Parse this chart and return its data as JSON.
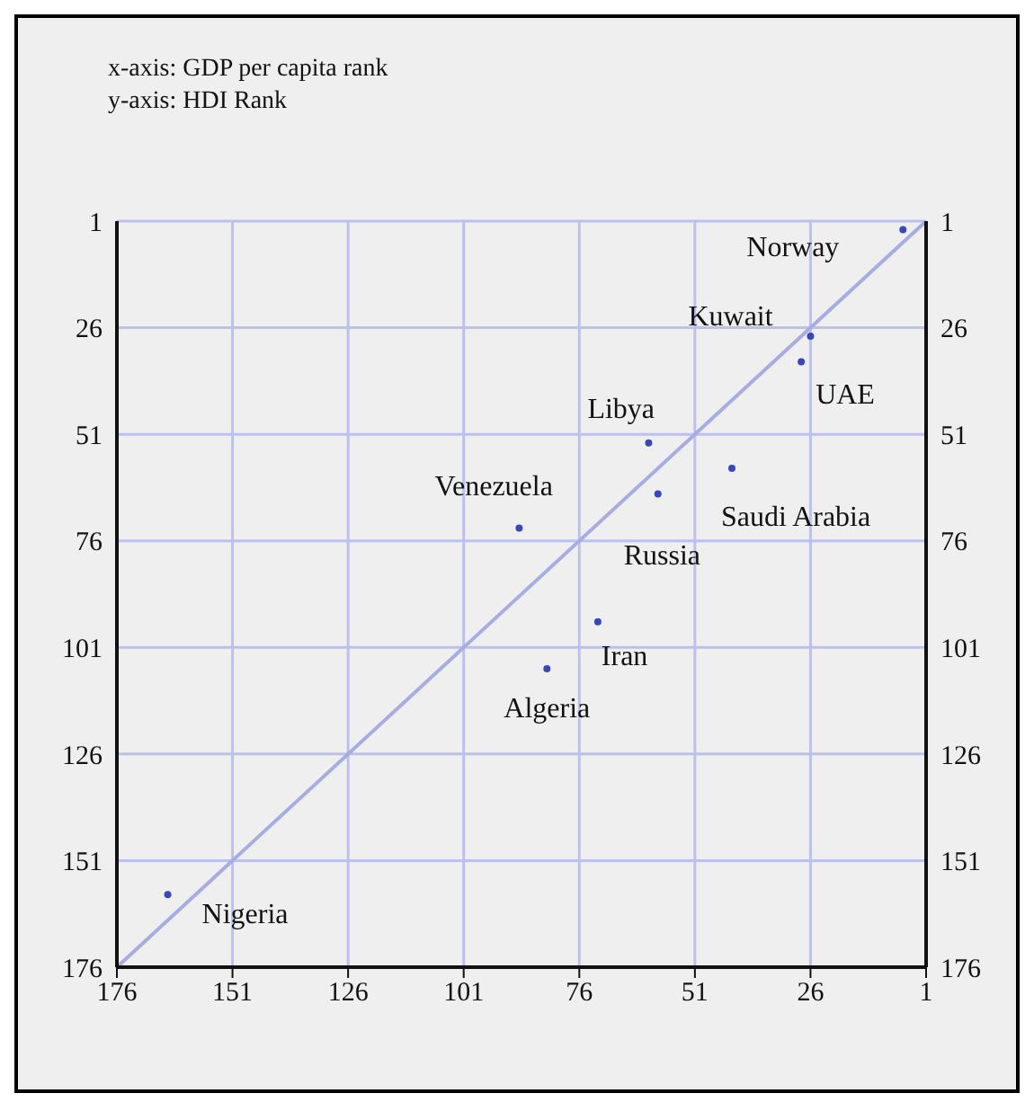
{
  "chart_data": {
    "type": "scatter",
    "annotations": [
      "x-axis: GDP per capita rank",
      "y-axis: HDI Rank",
      {
        "text": "Norway",
        "x": 6,
        "y": 3
      },
      {
        "text": "Kuwait",
        "x": 26,
        "y": 28
      },
      {
        "text": "UAE",
        "x": 28,
        "y": 34
      },
      {
        "text": "Libya",
        "x": 61,
        "y": 53
      },
      {
        "text": "Saudi Arabia",
        "x": 43,
        "y": 59
      },
      {
        "text": "Russia",
        "x": 59,
        "y": 65
      },
      {
        "text": "Venezuela",
        "x": 89,
        "y": 73
      },
      {
        "text": "Iran",
        "x": 72,
        "y": 95
      },
      {
        "text": "Algeria",
        "x": 83,
        "y": 106
      },
      {
        "text": "Nigeria",
        "x": 165,
        "y": 159
      }
    ],
    "series": [
      {
        "color": "#3848b8",
        "marker": "circle",
        "x": [
          6,
          26,
          28,
          61,
          43,
          59,
          89,
          72,
          83,
          165
        ],
        "values": [
          3,
          28,
          34,
          53,
          59,
          65,
          73,
          95,
          106,
          159
        ]
      },
      {
        "type": "line",
        "marker": "none",
        "color": "#a8ace4",
        "x": [
          176,
          1
        ],
        "values": [
          176,
          1
        ]
      }
    ],
    "xlim": [
      176,
      1
    ],
    "xticks": [
      176,
      151,
      126,
      101,
      76,
      51,
      26,
      1
    ],
    "ylim": [
      176,
      1
    ],
    "yticks": [
      1,
      26,
      51,
      76,
      101,
      126,
      151,
      176
    ],
    "y2lim": [
      176,
      1
    ],
    "y2ticks": [
      1,
      26,
      51,
      76,
      101,
      126,
      151,
      176
    ],
    "grid": true,
    "line_style": "solid"
  }
}
